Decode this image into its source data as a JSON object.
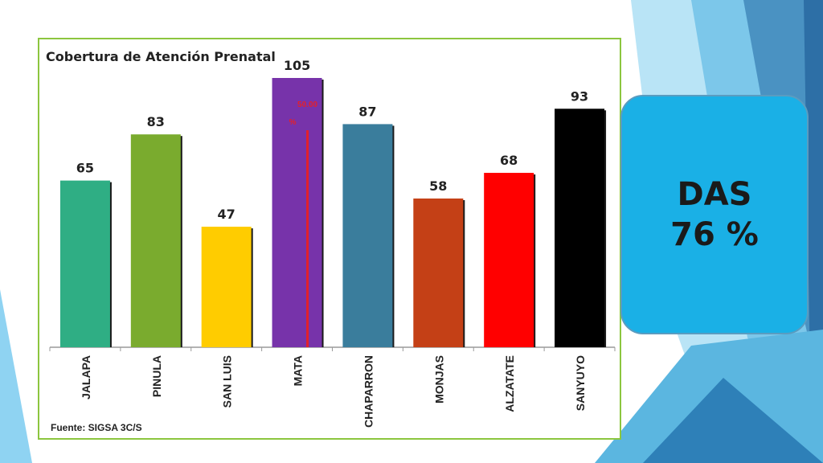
{
  "chart_data": {
    "type": "bar",
    "title": "Cobertura de Atención Prenatal",
    "categories": [
      "JALAPA",
      "PINULA",
      "SAN LUIS",
      "MATA",
      "CHAPARRON",
      "MONJAS",
      "ALZATATE",
      "SANYUYO"
    ],
    "values": [
      65,
      83,
      47,
      105,
      87,
      58,
      68,
      93
    ],
    "colors": [
      "#2fae84",
      "#7aab2e",
      "#ffcc00",
      "#7733aa",
      "#3a7d9c",
      "#c44016",
      "#ff0000",
      "#000000"
    ],
    "ylim": [
      0,
      105
    ],
    "grid": false,
    "legend": "none",
    "annotation": {
      "text_line1": "50.00",
      "text_line2": "%",
      "value": 50,
      "category": "MATA",
      "color": "#e3202b"
    }
  },
  "source": "Fuente: SIGSA 3C/S",
  "summary": {
    "line1": "DAS",
    "line2": "76 %",
    "background": "#1ab0e6"
  }
}
